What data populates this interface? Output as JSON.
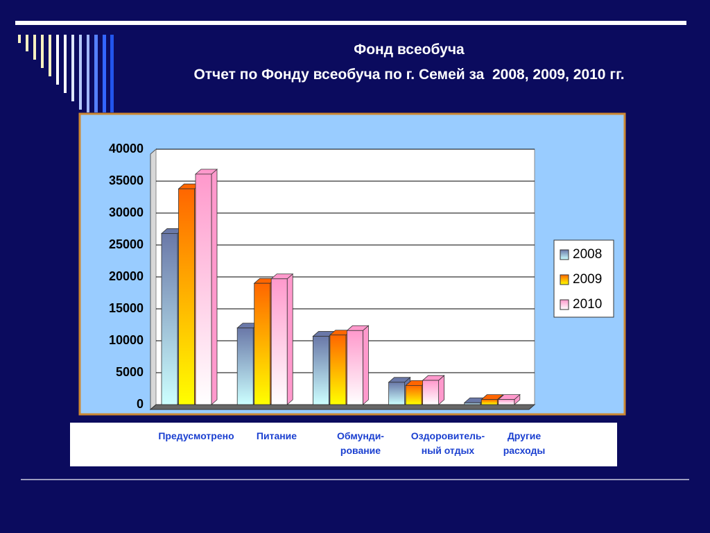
{
  "chart_data": {
    "type": "bar3d",
    "title": "Фонд всеобуча",
    "subtitle": "Отчет по Фонду всеобуча по г. Семей за  2008, 2009, 2010 гг.",
    "categories": [
      "Предусмотрено",
      "Питание",
      "Обмунди-\nрование",
      "Оздоровитель-\nный отдых",
      "Другие\nрасходы"
    ],
    "series": [
      {
        "name": "2008",
        "color": "#6a78a8",
        "values": [
          26800,
          12000,
          10700,
          3500,
          300
        ]
      },
      {
        "name": "2009",
        "color": "#ff6600",
        "values": [
          33800,
          19000,
          10900,
          3000,
          800
        ]
      },
      {
        "name": "2010",
        "color": "#ff99cc",
        "values": [
          36100,
          19700,
          11600,
          3800,
          800
        ]
      }
    ],
    "ylim": [
      0,
      40000
    ],
    "yticks": [
      0,
      5000,
      10000,
      15000,
      20000,
      25000,
      30000,
      35000,
      40000
    ],
    "grid": true,
    "legend": "right"
  }
}
